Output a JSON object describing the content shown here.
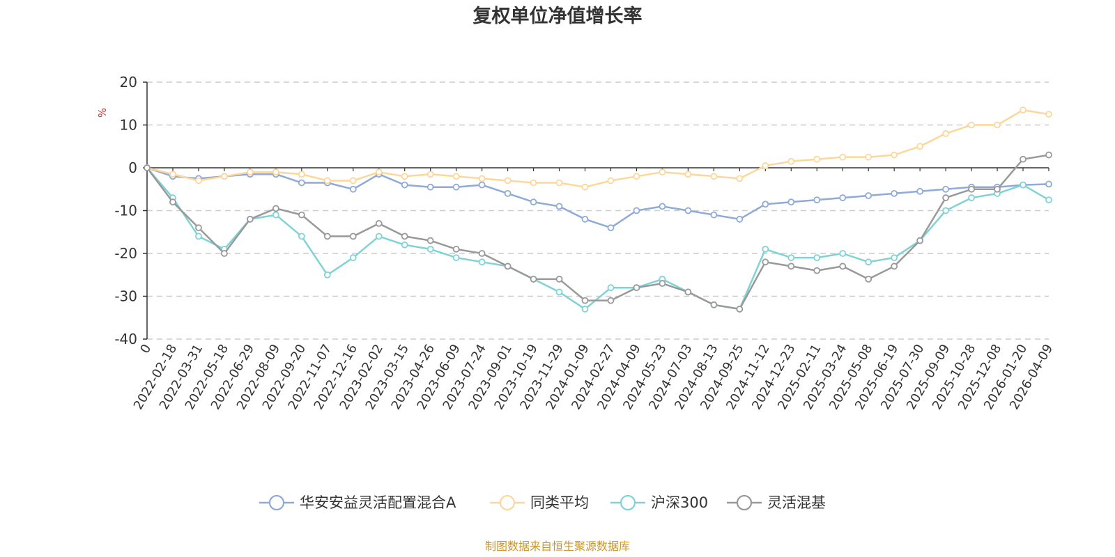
{
  "chart_data": {
    "type": "line",
    "title": "复权单位净值增长率",
    "ylabel": "%",
    "ylim": [
      -40,
      20
    ],
    "yticks": [
      20,
      10,
      0,
      -10,
      -20,
      -30,
      -40
    ],
    "categories": [
      "0",
      "2022-02-18",
      "2022-03-31",
      "2022-05-18",
      "2022-06-29",
      "2022-08-09",
      "2022-09-20",
      "2022-11-07",
      "2022-12-16",
      "2023-02-02",
      "2023-03-15",
      "2023-04-26",
      "2023-06-09",
      "2023-07-24",
      "2023-09-01",
      "2023-10-19",
      "2023-11-29",
      "2024-01-09",
      "2024-02-27",
      "2024-04-09",
      "2024-05-23",
      "2024-07-03",
      "2024-08-13",
      "2024-09-25",
      "2024-11-12",
      "2024-12-23",
      "2025-02-11",
      "2025-03-24",
      "2025-05-08",
      "2025-06-19",
      "2025-07-30",
      "2025-09-09",
      "2025-10-28",
      "2025-12-08",
      "2026-01-20",
      "2026-04-09"
    ],
    "series": [
      {
        "name": "华安安益灵活配置混合A",
        "color": "#8fa9d9",
        "values": [
          0,
          -2,
          -2.5,
          -2,
          -1.5,
          -1.5,
          -3.5,
          -3.5,
          -5,
          -1.5,
          -4,
          -4.5,
          -4.5,
          -4,
          -6,
          -8,
          -9,
          -12,
          -14,
          -10,
          -9,
          -10,
          -11,
          -12,
          -8.5,
          -8,
          -7.5,
          -7,
          -6.5,
          -6,
          -5.5,
          -5,
          -4.5,
          -4.5,
          -4,
          -3.8
        ]
      },
      {
        "name": "同类平均",
        "color": "#fcd79b",
        "values": [
          0,
          -1.5,
          -3,
          -2,
          -1,
          -1,
          -1.5,
          -3,
          -3,
          -1,
          -2,
          -1.5,
          -2,
          -2.5,
          -3,
          -3.5,
          -3.5,
          -4.5,
          -3,
          -2,
          -1,
          -1.5,
          -2,
          -2.5,
          0.5,
          1.5,
          2,
          2.5,
          2.5,
          3,
          5,
          8,
          10,
          10,
          13.5,
          12.5
        ]
      },
      {
        "name": "沪深300",
        "color": "#7fd3d6",
        "values": [
          0,
          -7,
          -16,
          -19,
          -12,
          -11,
          -16,
          -25,
          -21,
          -16,
          -18,
          -19,
          -21,
          -22,
          -23,
          -26,
          -29,
          -33,
          -28,
          -28,
          -26,
          -29,
          -32,
          -33,
          -19,
          -21,
          -21,
          -20,
          -22,
          -21,
          -17,
          -10,
          -7,
          -6,
          -4,
          -7.5
        ]
      },
      {
        "name": "灵活混基",
        "color": "#999999",
        "values": [
          0,
          -8,
          -14,
          -20,
          -12,
          -9.5,
          -11,
          -16,
          -16,
          -13,
          -16,
          -17,
          -19,
          -20,
          -23,
          -26,
          -26,
          -31,
          -31,
          -28,
          -27,
          -29,
          -32,
          -33,
          -22,
          -23,
          -24,
          -23,
          -26,
          -23,
          -17,
          -7,
          -5,
          -5,
          2,
          3
        ]
      }
    ]
  },
  "legend": {
    "items": [
      "华安安益灵活配置混合A",
      "同类平均",
      "沪深300",
      "灵活混基"
    ]
  },
  "source_note": "制图数据来自恒生聚源数据库"
}
